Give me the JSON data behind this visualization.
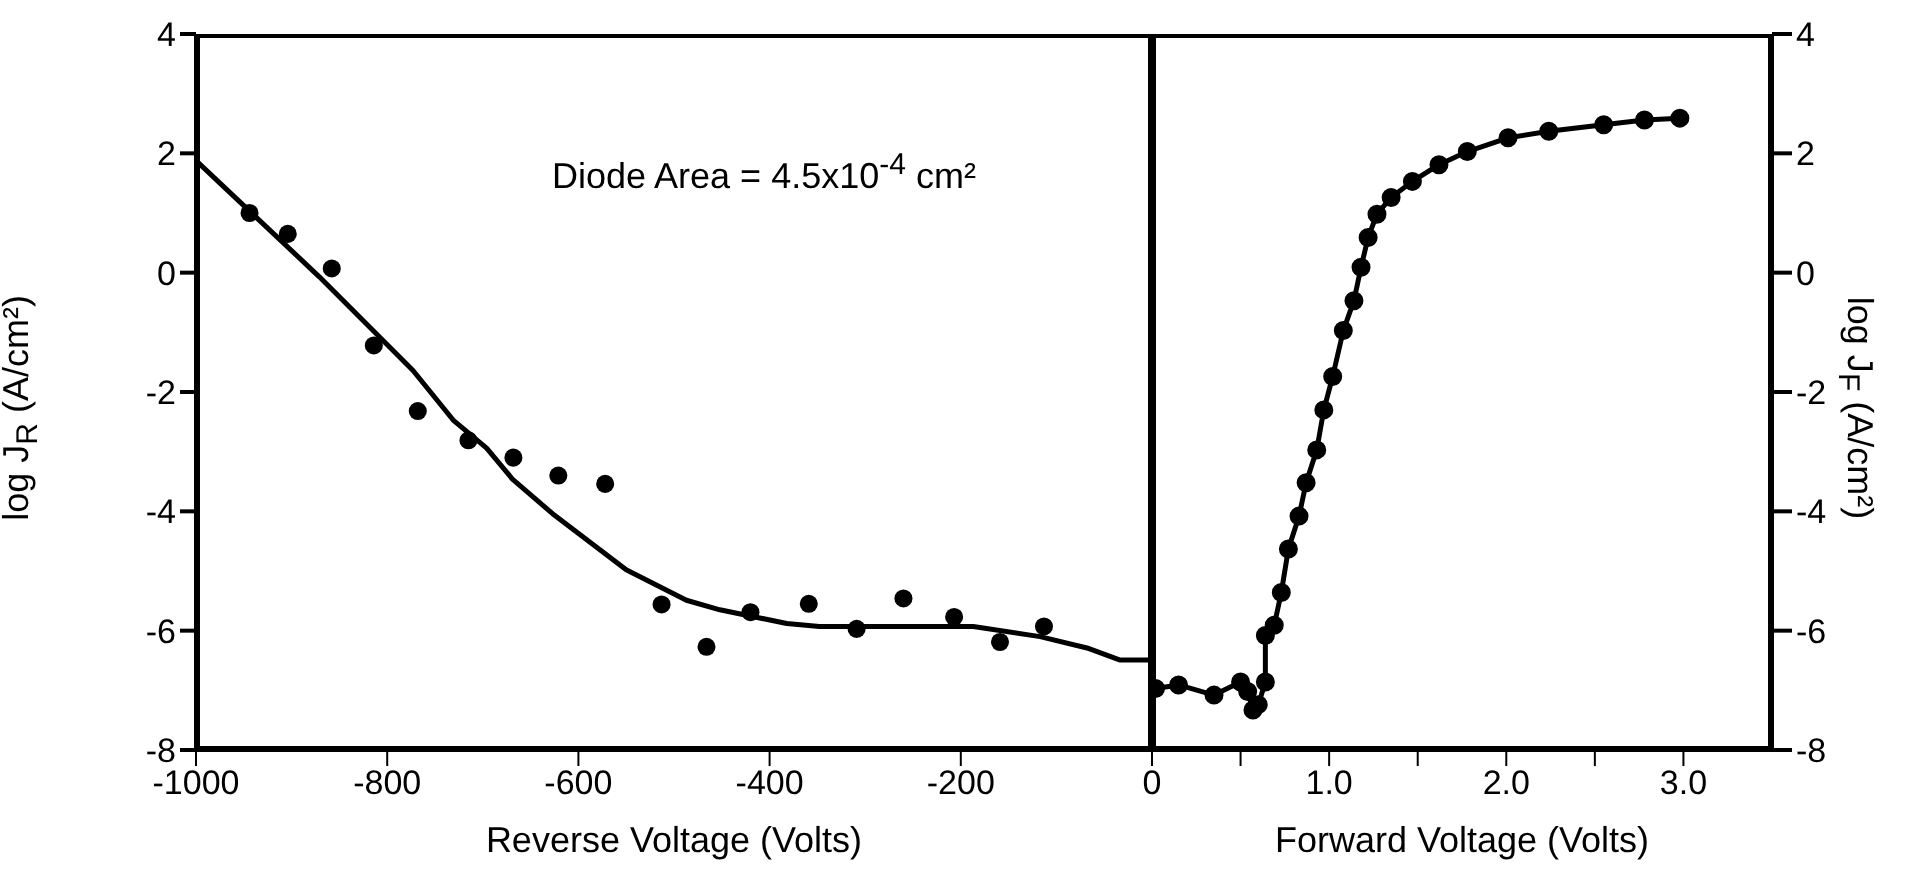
{
  "chart_data": [
    {
      "type": "line",
      "ylabel": "log J$_{R}$ (A/cm²)",
      "xlabel": "Reverse Voltage (Volts)",
      "annotations": [
        "Diode Area = 4.5x10$^{-4}$ cm²"
      ],
      "xlim": [
        -1000,
        0
      ],
      "xticks": [
        -1000,
        -800,
        -600,
        -400,
        -200
      ],
      "ylim": [
        -8,
        4
      ],
      "yticks": [
        -8,
        -6,
        -4,
        -2,
        0,
        2,
        4
      ],
      "series": [
        {
          "type": "scatter",
          "marker": "circle",
          "color": "#000000",
          "x": [
            -944,
            -904,
            -858,
            -814,
            -768,
            -715,
            -668,
            -621,
            -572,
            -513,
            -466,
            -420,
            -359,
            -309,
            -260,
            -207,
            -159,
            -113
          ],
          "values": [
            1.0,
            0.65,
            0.07,
            -1.22,
            -2.32,
            -2.81,
            -3.1,
            -3.4,
            -3.54,
            -5.56,
            -6.27,
            -5.69,
            -5.55,
            -5.97,
            -5.46,
            -5.77,
            -6.19,
            -5.93
          ]
        },
        {
          "marker": "none",
          "line_style": "solid",
          "color": "#000000",
          "x": [
            -1000,
            -955,
            -871,
            -773,
            -731,
            -696,
            -669,
            -627,
            -550,
            -487,
            -452,
            -382,
            -348,
            -187,
            -117,
            -68,
            -34,
            0
          ],
          "values": [
            1.88,
            1.2,
            -0.07,
            -1.64,
            -2.47,
            -2.94,
            -3.46,
            -4.04,
            -4.98,
            -5.49,
            -5.65,
            -5.88,
            -5.93,
            -5.93,
            -6.1,
            -6.29,
            -6.49,
            -6.49
          ]
        }
      ]
    },
    {
      "type": "line",
      "marker": "circle",
      "line_style": "solid",
      "xlabel": "Forward Voltage (Volts)",
      "y2label": "log J$_{F}$ (A/cm²)",
      "xlim": [
        0,
        3.5
      ],
      "xticks": [
        0,
        {
          "value": 0.5,
          "label": null
        },
        {
          "value": 1,
          "label": "1.0"
        },
        {
          "value": 1.5,
          "label": null
        },
        {
          "value": 2,
          "label": "2.0"
        },
        {
          "value": 2.5,
          "label": null
        },
        {
          "value": 3,
          "label": "3.0"
        }
      ],
      "y2lim": [
        -8,
        4
      ],
      "y2ticks": [
        -8,
        -6,
        -4,
        -2,
        0,
        2,
        4
      ],
      "series": [
        {
          "axis": "y2",
          "color": "#000000",
          "x": [
            0.02,
            0.15,
            0.35,
            0.5,
            0.54,
            0.57,
            0.6,
            0.64,
            0.64,
            0.69,
            0.73,
            0.77,
            0.83,
            0.87,
            0.93,
            0.97,
            1.02,
            1.08,
            1.14,
            1.18,
            1.22,
            1.27,
            1.35,
            1.47,
            1.62,
            1.78,
            2.01,
            2.24,
            2.55,
            2.78,
            2.98
          ],
          "values": [
            -6.97,
            -6.91,
            -7.08,
            -6.86,
            -7.02,
            -7.33,
            -7.24,
            -6.86,
            -6.08,
            -5.91,
            -5.36,
            -4.63,
            -4.08,
            -3.52,
            -2.97,
            -2.3,
            -1.74,
            -0.97,
            -0.47,
            0.09,
            0.59,
            0.98,
            1.26,
            1.53,
            1.81,
            2.03,
            2.26,
            2.37,
            2.48,
            2.56,
            2.59
          ]
        }
      ]
    }
  ]
}
